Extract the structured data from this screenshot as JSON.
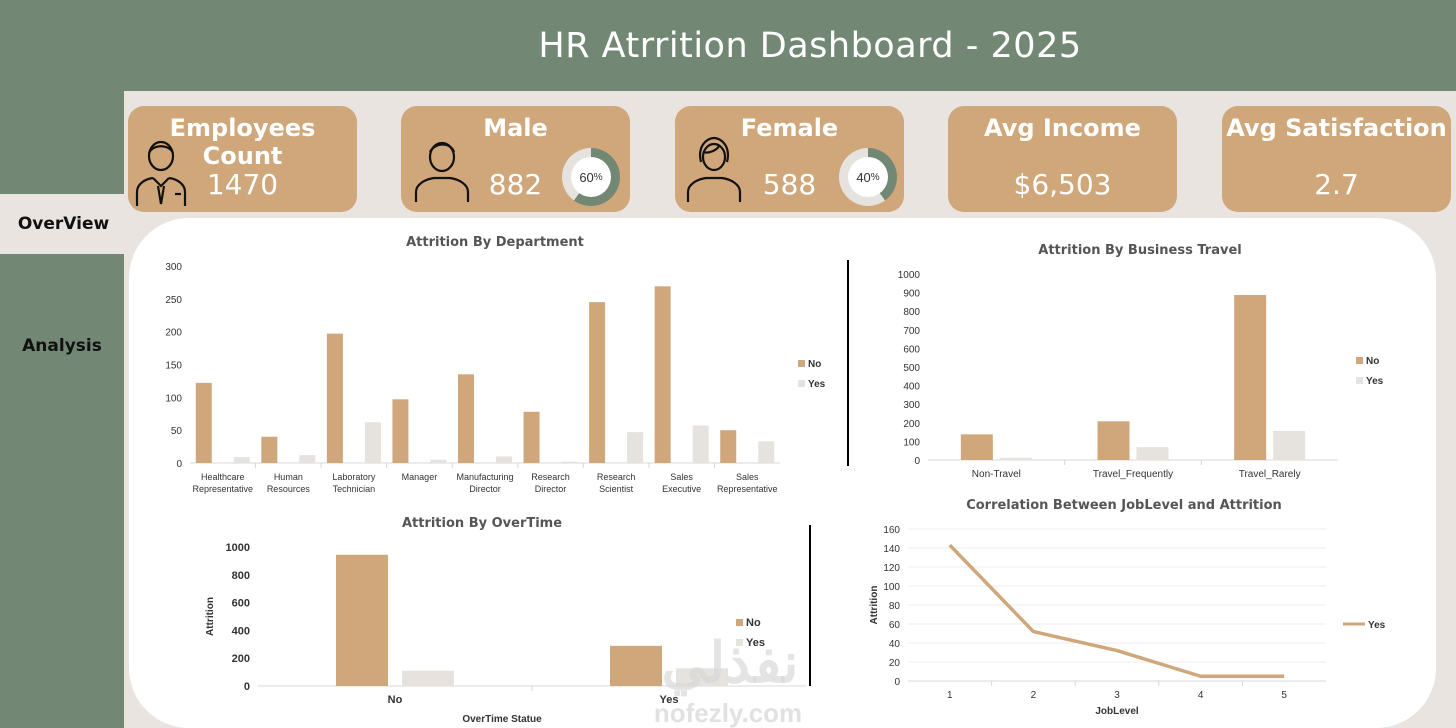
{
  "header": {
    "title": "HR Atrrition Dashboard - 2025"
  },
  "nav": {
    "overview": "OverView",
    "analysis": "Analysis"
  },
  "cards": {
    "employees": {
      "label": "Employees Count",
      "value": "1470"
    },
    "male": {
      "label": "Male",
      "value": "882",
      "percent": "60",
      "percent_sign": "%",
      "share": 0.6
    },
    "female": {
      "label": "Female",
      "value": "588",
      "percent": "40",
      "percent_sign": "%",
      "share": 0.4
    },
    "income": {
      "label": "Avg Income",
      "value": "$6,503"
    },
    "satisfaction": {
      "label": "Avg Satisfaction",
      "value": "2.7"
    }
  },
  "colors": {
    "no": "#cfa77a",
    "yes": "#e6e2dd",
    "accent": "#728874"
  },
  "chart_data": [
    {
      "type": "bar",
      "title": "Attrition By  Department",
      "categories": [
        [
          "Healthcare",
          "Representative"
        ],
        [
          "Human",
          "Resources"
        ],
        [
          "Laboratory",
          "Technician"
        ],
        [
          "Manager"
        ],
        [
          "Manufacturing",
          "Director"
        ],
        [
          "Research",
          "Director"
        ],
        [
          "Research",
          "Scientist"
        ],
        [
          "Sales",
          "Executive"
        ],
        [
          "Sales",
          "Representative"
        ]
      ],
      "series": [
        {
          "name": "No",
          "values": [
            122,
            40,
            197,
            97,
            135,
            78,
            245,
            269,
            50
          ]
        },
        {
          "name": "Yes",
          "values": [
            9,
            12,
            62,
            5,
            10,
            2,
            47,
            57,
            33
          ]
        }
      ],
      "ylim": [
        0,
        300
      ],
      "yticks": [
        0,
        50,
        100,
        150,
        200,
        250,
        300
      ],
      "legend": "right"
    },
    {
      "type": "bar",
      "title": "Attrition By Business Travel",
      "categories": [
        [
          "Non-Travel"
        ],
        [
          "Travel_Frequently"
        ],
        [
          "Travel_Rarely"
        ]
      ],
      "series": [
        {
          "name": "No",
          "values": [
            138,
            208,
            887
          ]
        },
        {
          "name": "Yes",
          "values": [
            12,
            69,
            156
          ]
        }
      ],
      "ylim": [
        0,
        1000
      ],
      "yticks": [
        0,
        100,
        200,
        300,
        400,
        500,
        600,
        700,
        800,
        900,
        1000
      ],
      "legend": "right"
    },
    {
      "type": "bar",
      "title": "Attrition By OverTime",
      "xlabel": "OverTime Statue",
      "ylabel": "Attrition",
      "categories": [
        [
          "No"
        ],
        [
          "Yes"
        ]
      ],
      "series": [
        {
          "name": "No",
          "values": [
            944,
            289
          ]
        },
        {
          "name": "Yes",
          "values": [
            110,
            127
          ]
        }
      ],
      "ylim": [
        0,
        1000
      ],
      "yticks": [
        0,
        200,
        400,
        600,
        800,
        1000
      ],
      "legend": "right"
    },
    {
      "type": "line",
      "title": "Correlation Between JobLevel and Attrition",
      "xlabel": "JobLevel",
      "ylabel": "Attrition",
      "x": [
        "1",
        "2",
        "3",
        "4",
        "5"
      ],
      "series": [
        {
          "name": "Yes",
          "values": [
            143,
            52,
            32,
            5,
            5
          ]
        }
      ],
      "ylim": [
        0,
        160
      ],
      "yticks": [
        0,
        20,
        40,
        60,
        80,
        100,
        120,
        140,
        160
      ],
      "legend": "right"
    }
  ],
  "watermark": {
    "arabic": "نفذلي",
    "latin": "nofezly.com"
  }
}
